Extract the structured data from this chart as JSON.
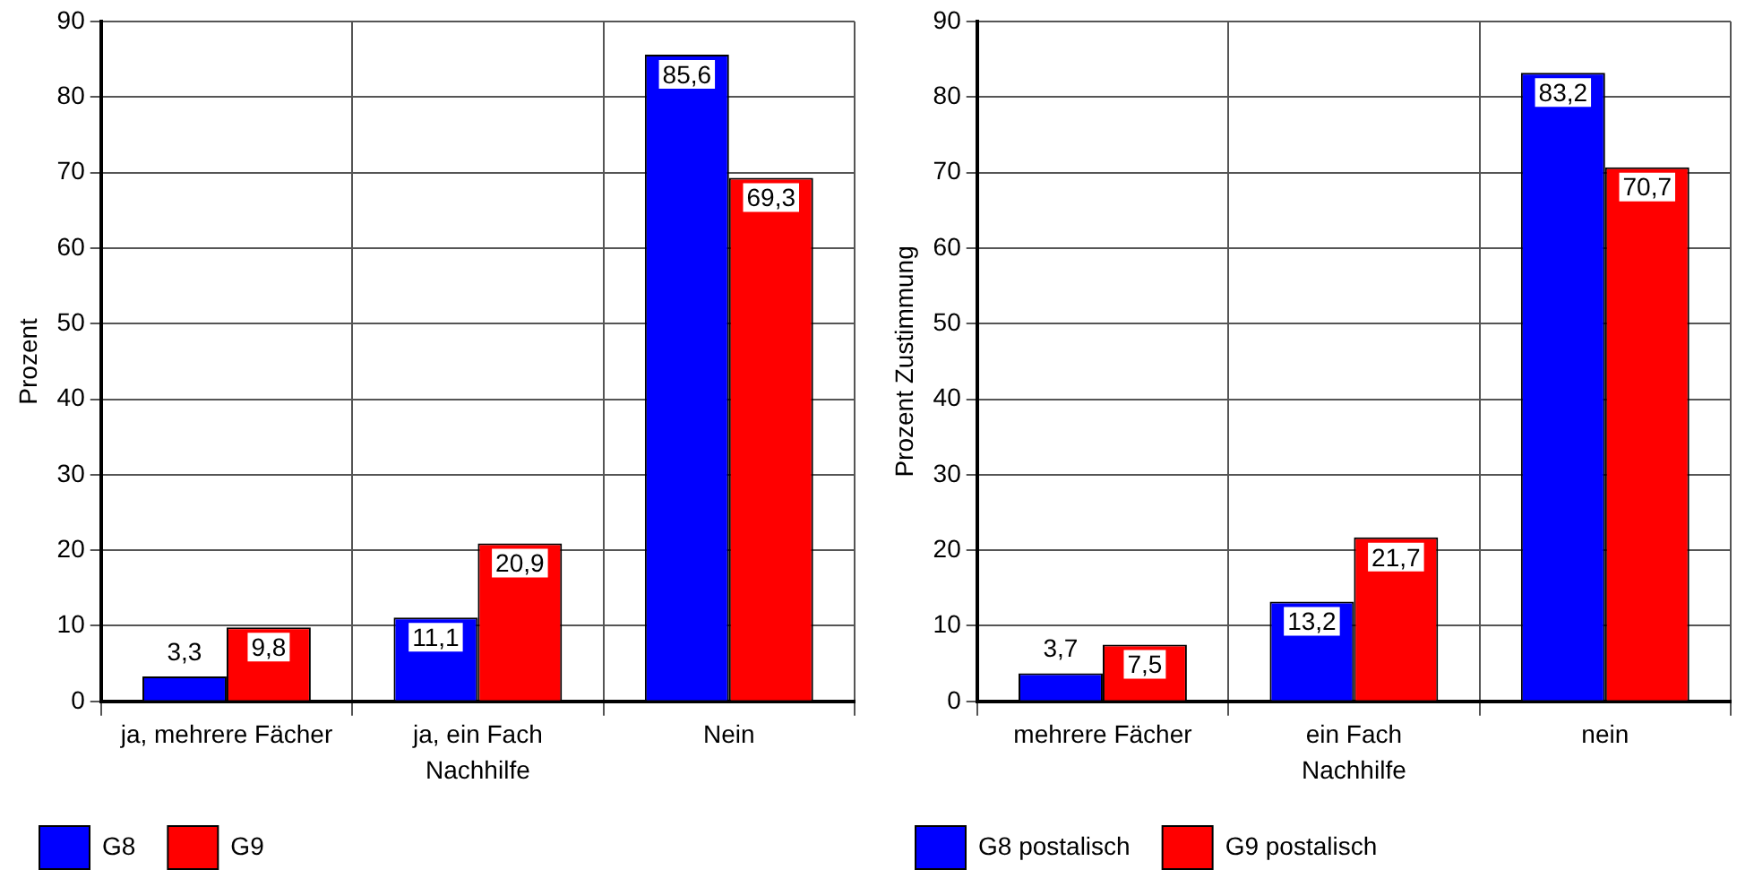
{
  "chart_data": [
    {
      "type": "bar",
      "categories": [
        "ja, mehrere Fächer",
        "ja, ein Fach",
        "Nein"
      ],
      "xlabel": "Nachhilfe",
      "ylabel": "Prozent",
      "ylim": [
        0,
        90
      ],
      "yticks": [
        0,
        10,
        20,
        30,
        40,
        50,
        60,
        70,
        80,
        90
      ],
      "grid": true,
      "legend": "bottom left",
      "series": [
        {
          "name": "G8",
          "color": "#0000ff",
          "values": [
            3.3,
            11.1,
            85.6
          ],
          "value_labels": [
            "3,3",
            "11,1",
            "85,6"
          ]
        },
        {
          "name": "G9",
          "color": "#ff0000",
          "values": [
            9.8,
            20.9,
            69.3
          ],
          "value_labels": [
            "9,8",
            "20,9",
            "69,3"
          ]
        }
      ]
    },
    {
      "type": "bar",
      "categories": [
        "mehrere Fächer",
        "ein Fach",
        "nein"
      ],
      "xlabel": "Nachhilfe",
      "ylabel": "Prozent Zustimmung",
      "ylim": [
        0,
        90
      ],
      "yticks": [
        0,
        10,
        20,
        30,
        40,
        50,
        60,
        70,
        80,
        90
      ],
      "grid": true,
      "legend": "bottom left",
      "series": [
        {
          "name": "G8 postalisch",
          "color": "#0000ff",
          "values": [
            3.7,
            13.2,
            83.2
          ],
          "value_labels": [
            "3,7",
            "13,2",
            "83,2"
          ]
        },
        {
          "name": "G9 postalisch",
          "color": "#ff0000",
          "values": [
            7.5,
            21.7,
            70.7
          ],
          "value_labels": [
            "7,5",
            "21,7",
            "70,7"
          ]
        }
      ]
    }
  ]
}
